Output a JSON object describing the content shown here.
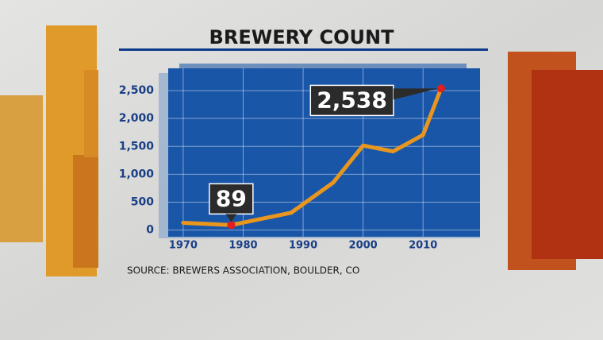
{
  "chart_data": {
    "type": "line",
    "title": "BREWERY COUNT",
    "source": "SOURCE: BREWERS ASSOCIATION, BOULDER, CO",
    "x": [
      1970,
      1978,
      1988,
      1995,
      2000,
      2005,
      2010,
      2013
    ],
    "series": [
      {
        "color": "#e8961e",
        "values": [
          130,
          89,
          310,
          850,
          1515,
          1410,
          1706,
          2538
        ],
        "value_labels": [
          null,
          "89",
          null,
          null,
          null,
          null,
          null,
          "2,538"
        ]
      }
    ],
    "xlim": [
      1967.5,
      2019.5
    ],
    "xticks": [
      1970,
      1980,
      1990,
      2000,
      2010
    ],
    "ylim": [
      -120,
      2900
    ],
    "yticks": [
      0,
      500,
      {
        "value": 1000,
        "label": "1,000"
      },
      {
        "value": 1500,
        "label": "1,500"
      },
      {
        "value": 2000,
        "label": "2,000"
      },
      {
        "value": 2500,
        "label": "2,500"
      }
    ],
    "grid": true
  }
}
